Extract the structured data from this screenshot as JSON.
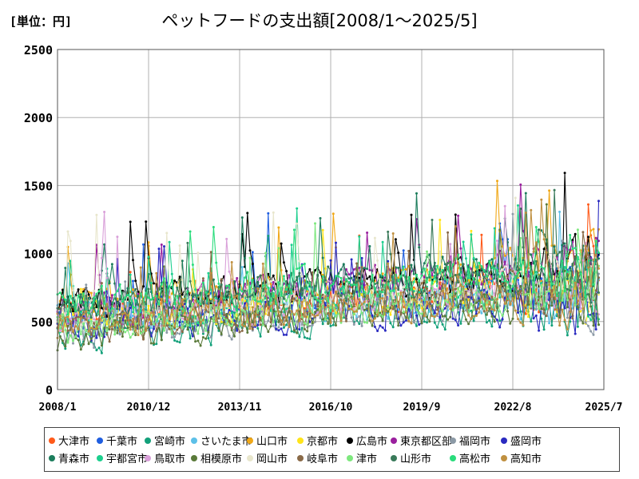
{
  "unit_label": "[単位：円]",
  "chart_data": {
    "type": "line",
    "title": "ペットフードの支出額[2008/1～2025/5]",
    "xlabel": "",
    "ylabel": "",
    "ylim": [
      0,
      2500
    ],
    "yticks": [
      0,
      500,
      1000,
      1500,
      2000,
      2500
    ],
    "xlim": [
      "2008/1",
      "2025/7"
    ],
    "xticks": [
      "2008/1",
      "2010/12",
      "2013/11",
      "2016/10",
      "2019/9",
      "2022/8",
      "2025/7"
    ],
    "grid": true,
    "legend_position": "bottom",
    "series": [
      {
        "name": "大津市",
        "color": "#ff5a1a"
      },
      {
        "name": "千葉市",
        "color": "#1f5ee0"
      },
      {
        "name": "宮崎市",
        "color": "#13a07a"
      },
      {
        "name": "さいたま市",
        "color": "#5cc0e8"
      },
      {
        "name": "山口市",
        "color": "#f0a818"
      },
      {
        "name": "京都市",
        "color": "#ffe41a"
      },
      {
        "name": "広島市",
        "color": "#000000"
      },
      {
        "name": "東京都区部",
        "color": "#9a1f9e"
      },
      {
        "name": "福岡市",
        "color": "#8c9aa6"
      },
      {
        "name": "盛岡市",
        "color": "#2a2ac0"
      },
      {
        "name": "青森市",
        "color": "#1c7d5c"
      },
      {
        "name": "宇都宮市",
        "color": "#1ccf8e"
      },
      {
        "name": "鳥取市",
        "color": "#d9a0d9"
      },
      {
        "name": "相模原市",
        "color": "#5a7a3a"
      },
      {
        "name": "岡山市",
        "color": "#e8e6cc"
      },
      {
        "name": "岐阜市",
        "color": "#8a6a48"
      },
      {
        "name": "津市",
        "color": "#7ee87e"
      },
      {
        "name": "山形市",
        "color": "#3a7a5a"
      },
      {
        "name": "高松市",
        "color": "#2adc7c"
      },
      {
        "name": "高知市",
        "color": "#c09040"
      }
    ]
  }
}
